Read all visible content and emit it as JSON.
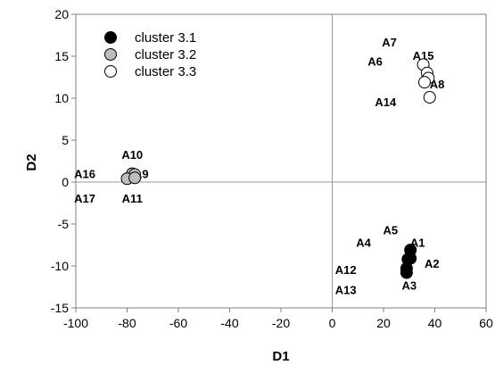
{
  "chart_data": {
    "type": "scatter",
    "xlabel": "D1",
    "ylabel": "D2",
    "xlim": [
      -100,
      60
    ],
    "ylim": [
      -15,
      20
    ],
    "xticks": [
      "-100",
      "-80",
      "-60",
      "-40",
      "-20",
      "0",
      "20",
      "40",
      "60"
    ],
    "yticks": [
      "-15",
      "-10",
      "-5",
      "0",
      "5",
      "10",
      "15",
      "20"
    ],
    "reference_lines": {
      "x": 0,
      "y": 0
    },
    "legend_position": "top-left",
    "series": [
      {
        "name": "cluster 3.1",
        "color": "#000000",
        "points": [
          {
            "x": 30.5,
            "y": -8.1
          },
          {
            "x": 30.5,
            "y": -9.1
          },
          {
            "x": 29.5,
            "y": -9.2
          },
          {
            "x": 29.0,
            "y": -10.3
          },
          {
            "x": 29.0,
            "y": -10.8
          }
        ]
      },
      {
        "name": "cluster 3.2",
        "color": "#bdbdbd",
        "points": [
          {
            "x": -78.0,
            "y": 1.0
          },
          {
            "x": -77.0,
            "y": 0.9
          },
          {
            "x": -80.0,
            "y": 0.4
          },
          {
            "x": -77.0,
            "y": 0.5
          }
        ]
      },
      {
        "name": "cluster 3.3",
        "color": "#ffffff",
        "points": [
          {
            "x": 35.5,
            "y": 14.0
          },
          {
            "x": 37.0,
            "y": 13.0
          },
          {
            "x": 37.5,
            "y": 12.4
          },
          {
            "x": 36.0,
            "y": 11.9
          },
          {
            "x": 38.0,
            "y": 10.1
          }
        ]
      }
    ],
    "annotations": [
      {
        "text": "A1",
        "x": 33.3,
        "y": -7.2
      },
      {
        "text": "A2",
        "x": 38.9,
        "y": -9.7
      },
      {
        "text": "A3",
        "x": 30.0,
        "y": -12.3
      },
      {
        "text": "A4",
        "x": 12.2,
        "y": -7.2
      },
      {
        "text": "A5",
        "x": 22.7,
        "y": -5.7
      },
      {
        "text": "A6",
        "x": 16.7,
        "y": 14.4
      },
      {
        "text": "A7",
        "x": 22.3,
        "y": 16.7
      },
      {
        "text": "A8",
        "x": 40.9,
        "y": 11.7
      },
      {
        "text": "A9",
        "x": -74.5,
        "y": 1.0
      },
      {
        "text": "A10",
        "x": -78.0,
        "y": 3.3
      },
      {
        "text": "A11",
        "x": -78.0,
        "y": -1.9
      },
      {
        "text": "A12",
        "x": 5.3,
        "y": -10.4
      },
      {
        "text": "A13",
        "x": 5.3,
        "y": -12.8
      },
      {
        "text": "A14",
        "x": 20.8,
        "y": 9.6
      },
      {
        "text": "A15",
        "x": 35.5,
        "y": 15.1
      },
      {
        "text": "A16",
        "x": -96.5,
        "y": 1.0
      },
      {
        "text": "A17",
        "x": -96.5,
        "y": -1.9
      }
    ]
  }
}
